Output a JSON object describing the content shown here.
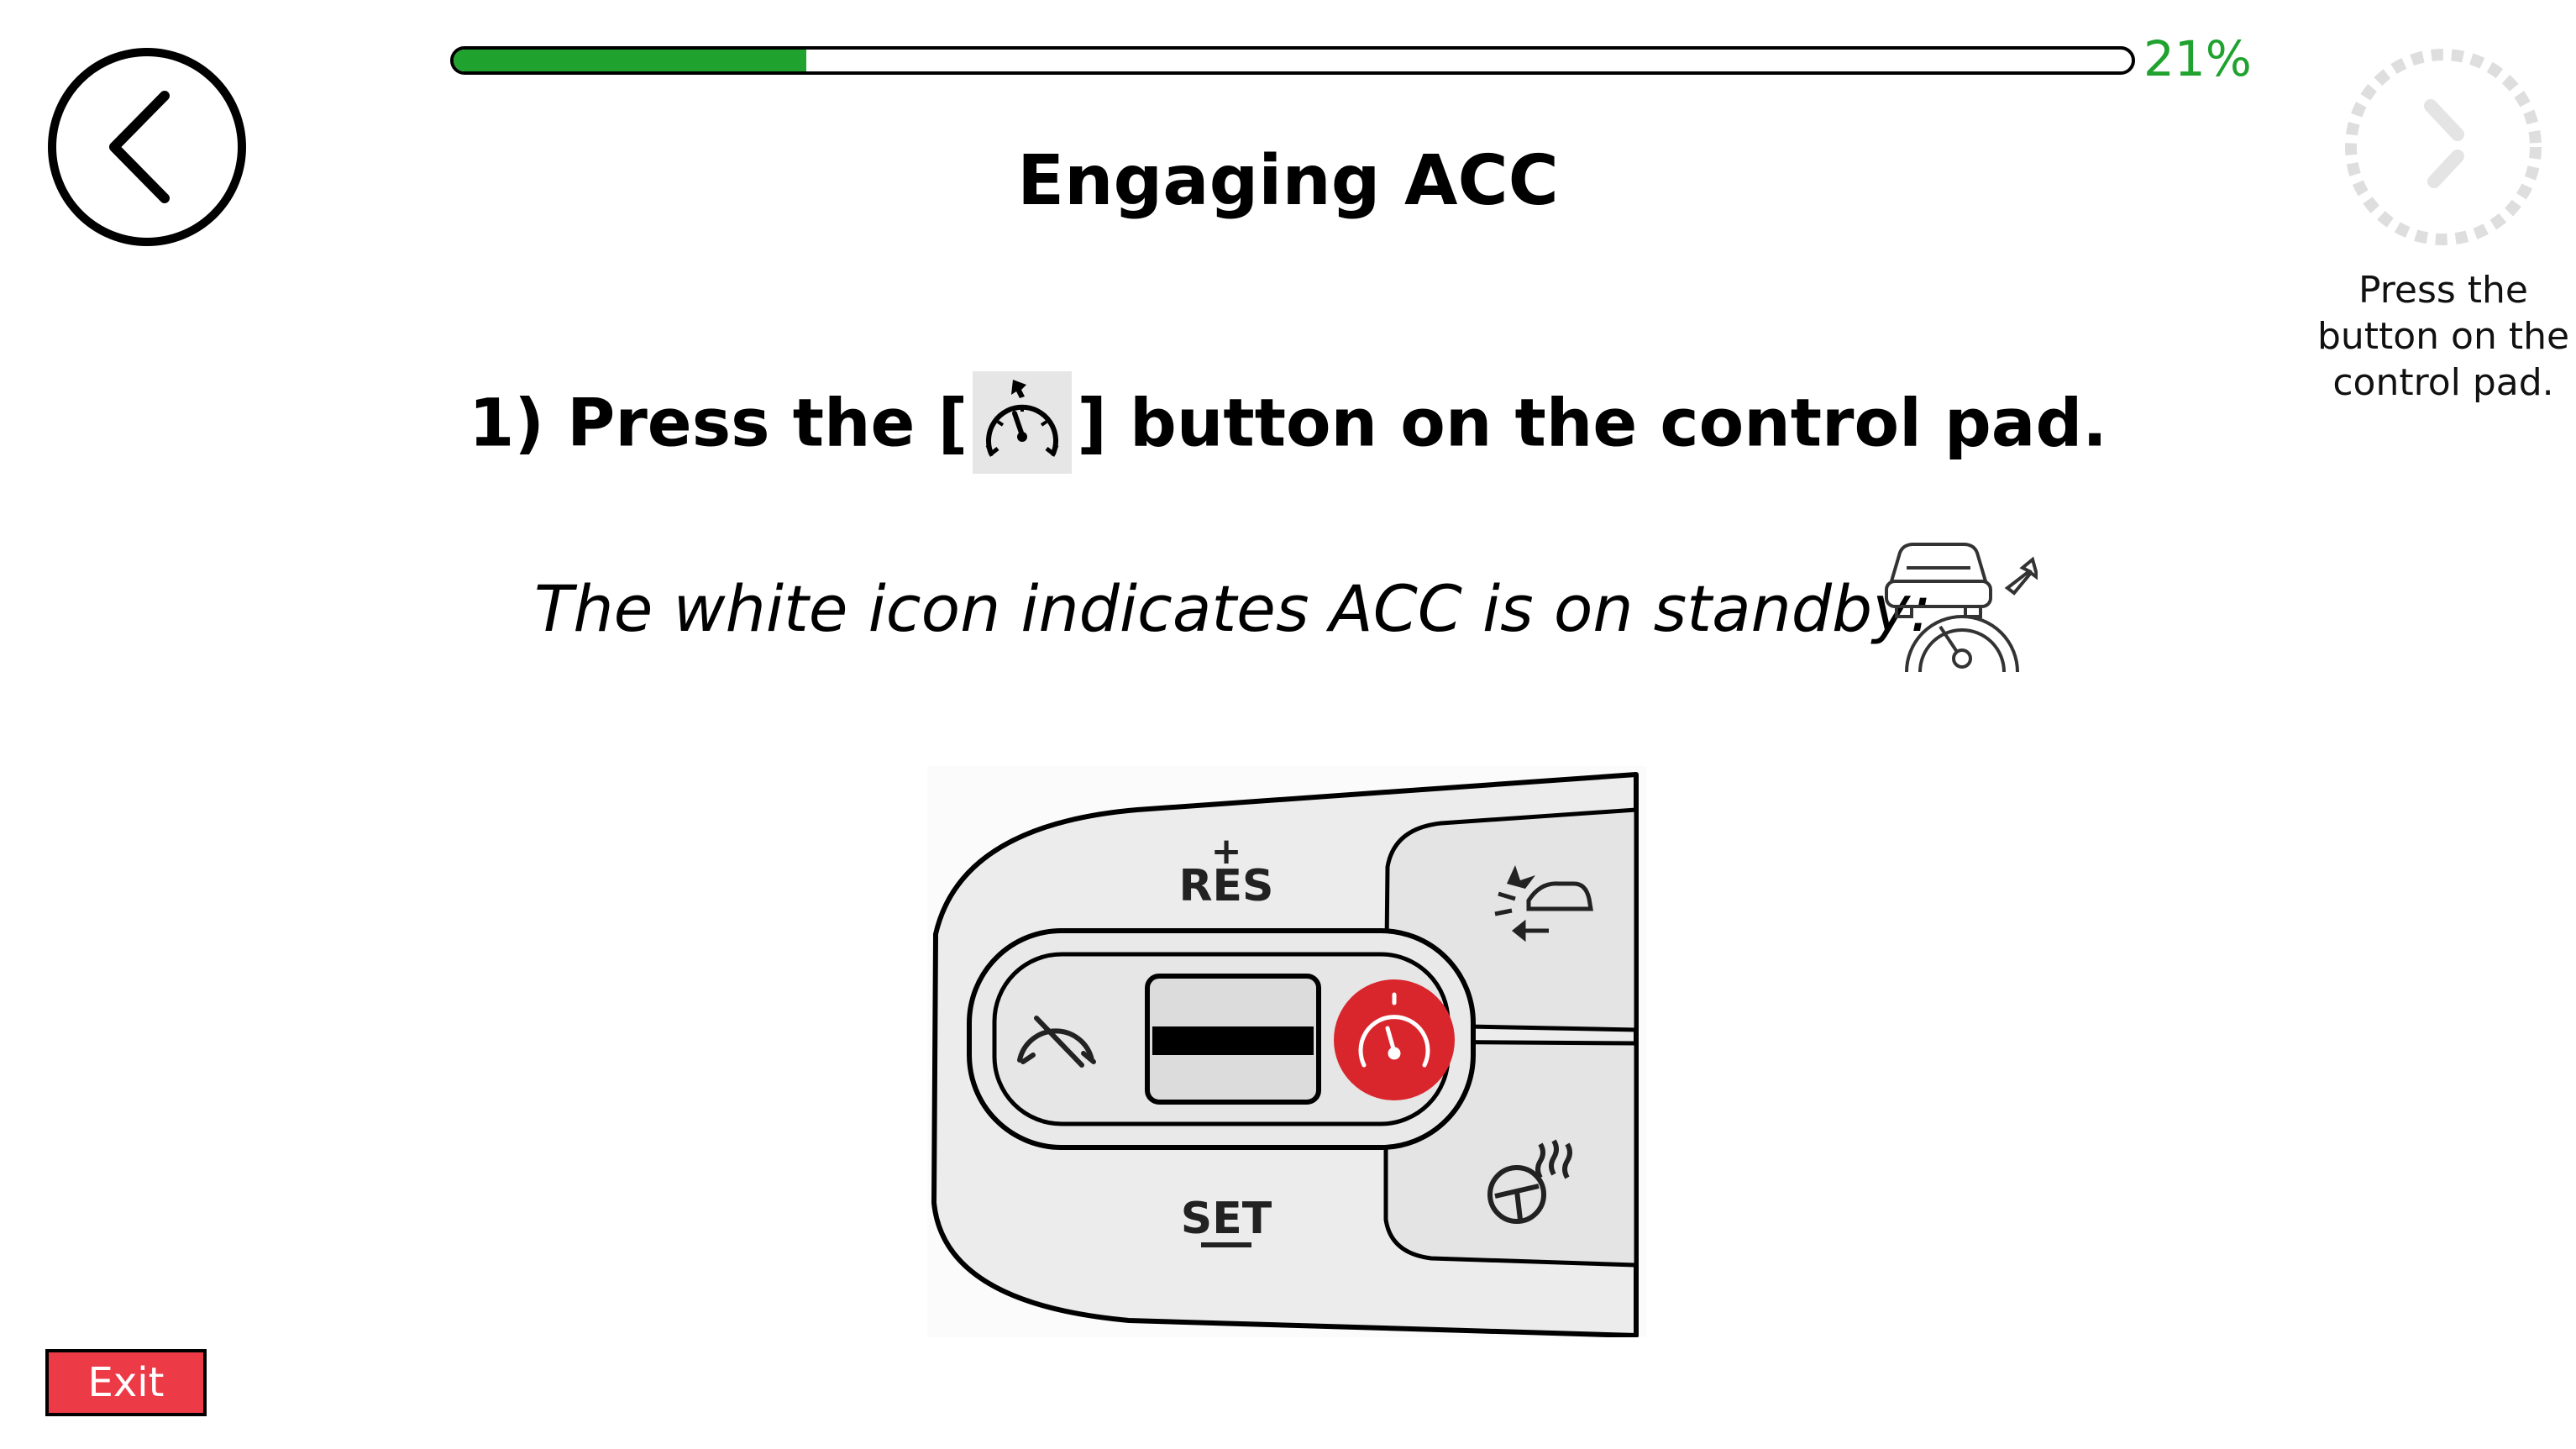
{
  "header": {
    "progress_percent": 21,
    "progress_label": "21%",
    "title": "Engaging ACC"
  },
  "instruction": {
    "step_prefix": "1) Press the [",
    "step_suffix": "] button on the control pad.",
    "standby_text": "The white icon indicates ACC is on standby:"
  },
  "control_pad": {
    "res_label": "RES",
    "set_label": "SET",
    "acc_button_color": "#d9262d"
  },
  "side_hint": {
    "text": "Press the button on the control pad."
  },
  "footer": {
    "exit_label": "Exit"
  },
  "colors": {
    "progress": "#1fa22e",
    "exit_button": "#ec3b47"
  },
  "icons": {
    "back": "chevron-left-icon",
    "timer": "countdown-timer-icon",
    "acc": "acc-speedometer-icon",
    "standby": "acc-standby-icon"
  }
}
